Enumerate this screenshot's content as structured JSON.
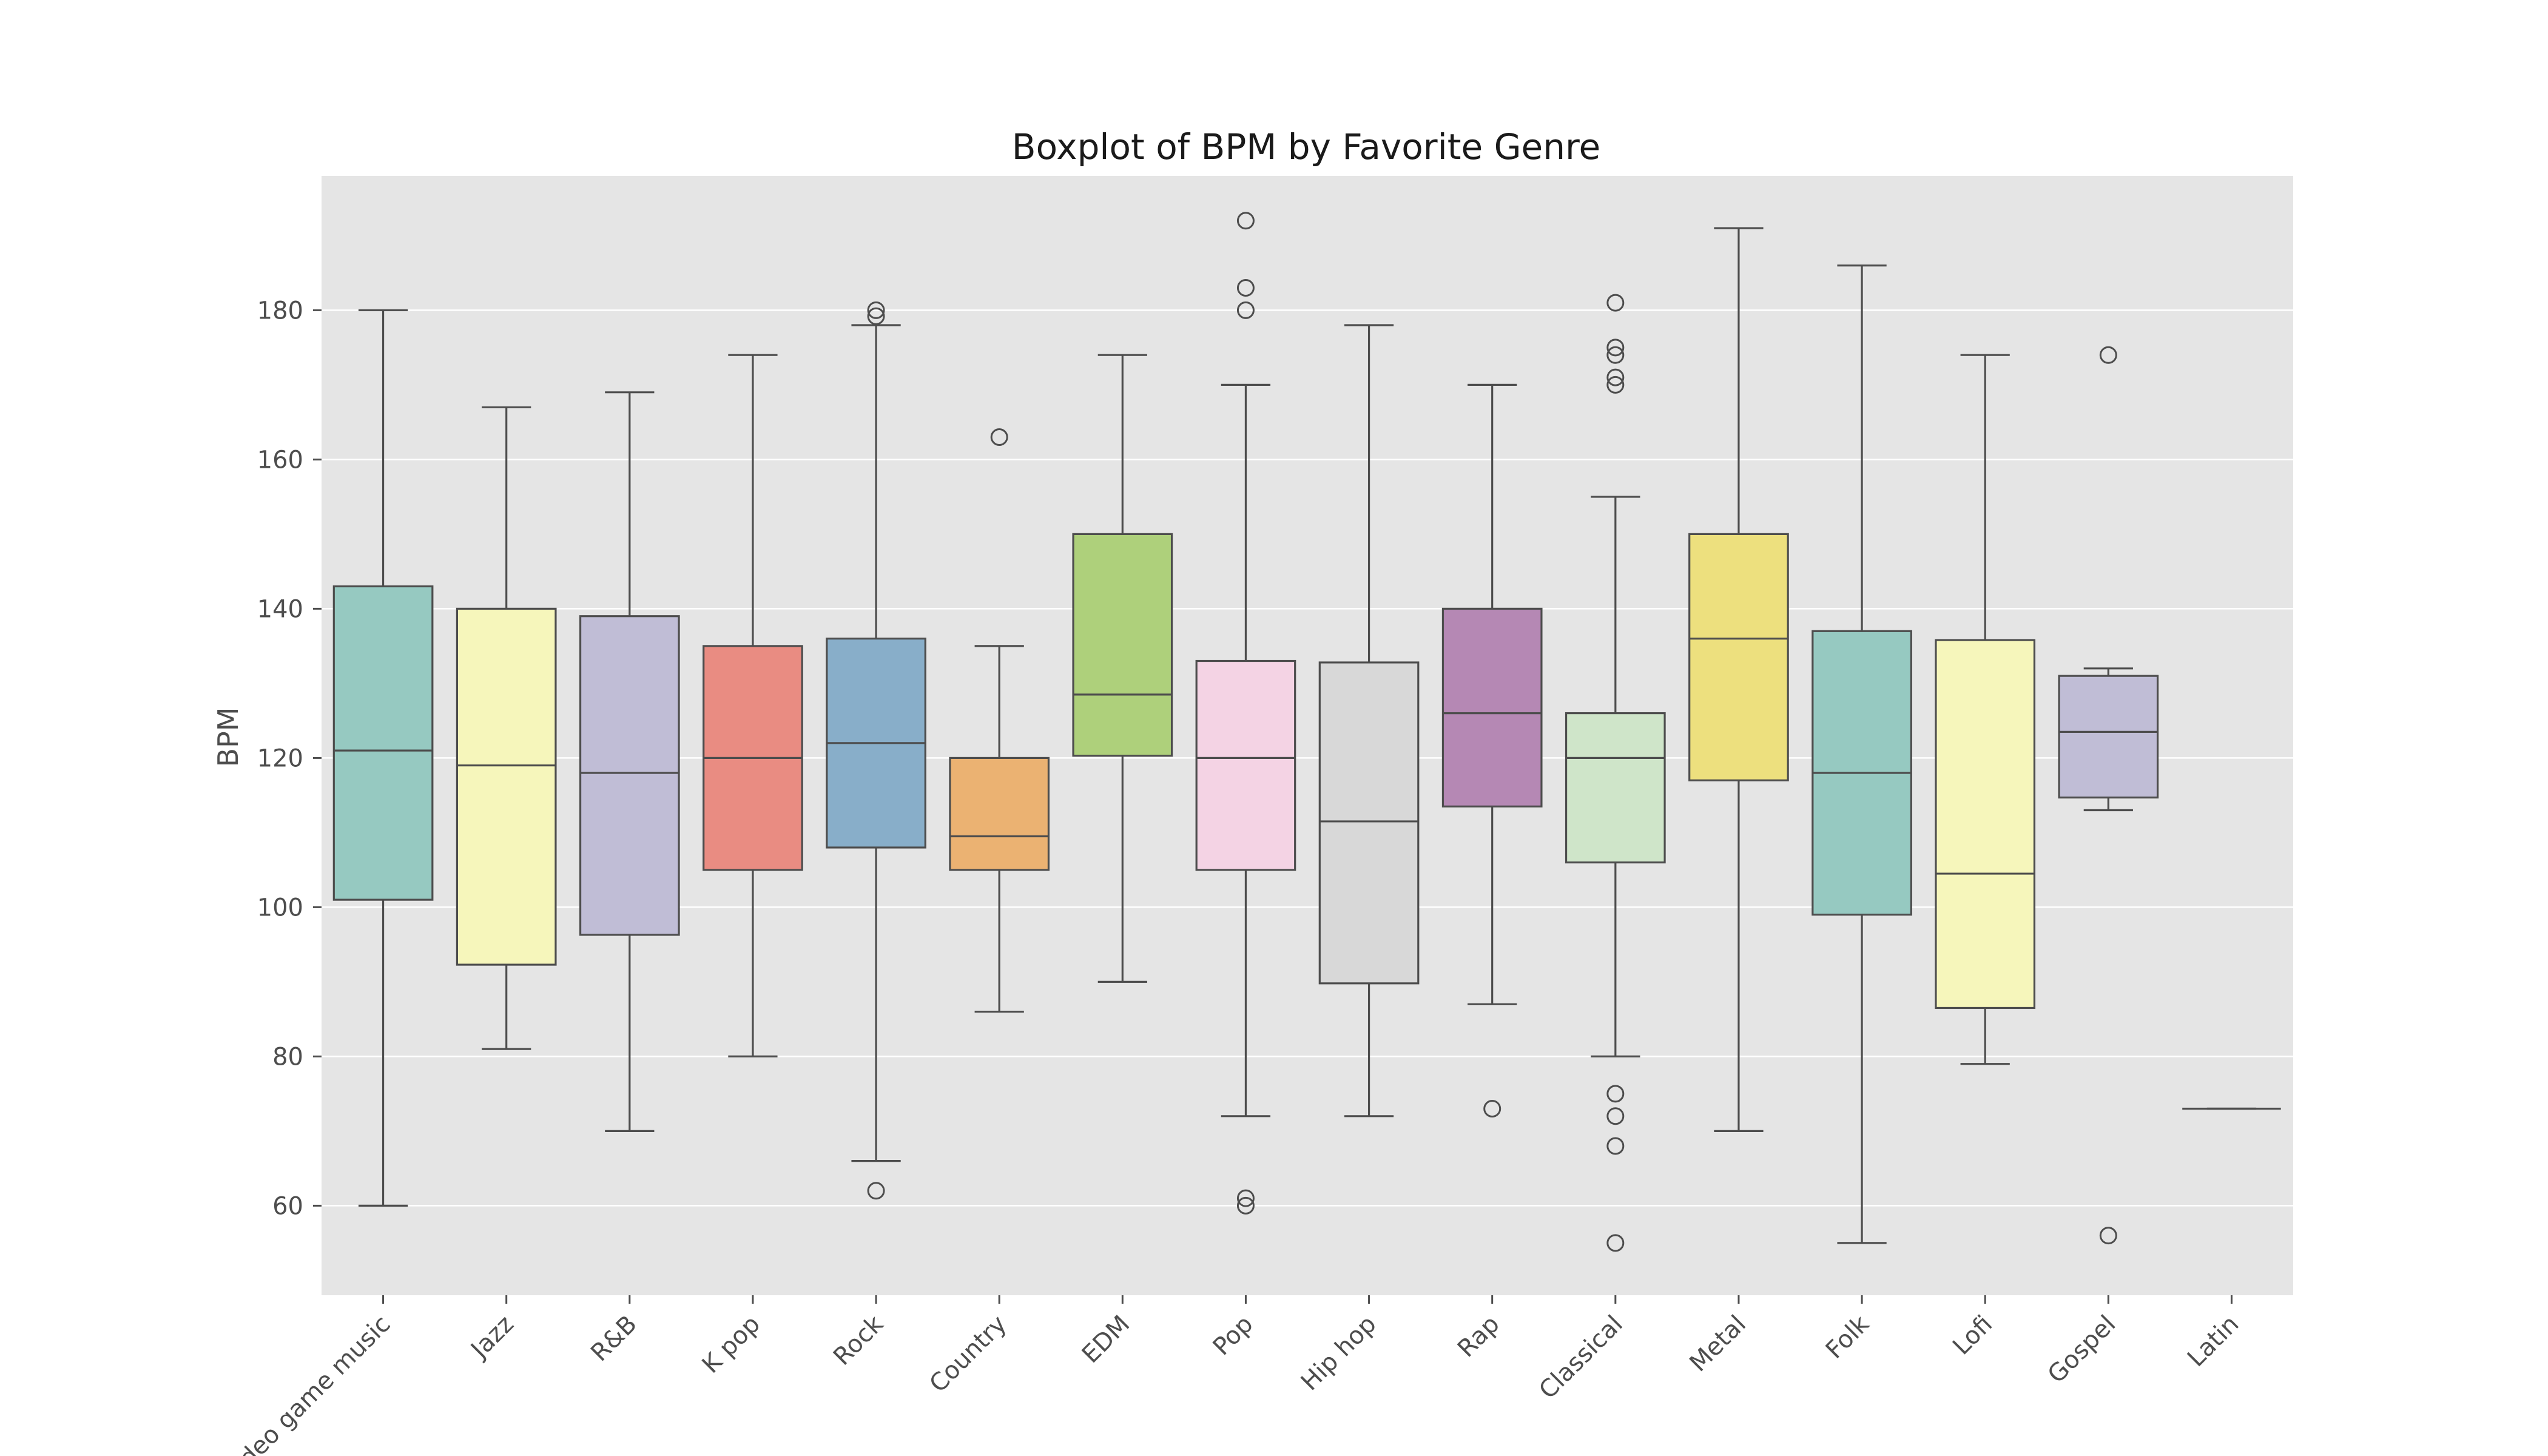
{
  "chart_data": {
    "type": "boxplot",
    "title": "Boxplot of BPM by Favorite Genre",
    "xlabel": "",
    "ylabel": "BPM",
    "ylim": [
      48,
      198
    ],
    "yticks": [
      60,
      80,
      100,
      120,
      140,
      160,
      180
    ],
    "grid": true,
    "legend": "none",
    "colors": {
      "plot_background": "#e5e5e5",
      "grid": "#ffffff",
      "box_edge": "#4d4d4d"
    },
    "categories": [
      "Video game music",
      "Jazz",
      "R&B",
      "K pop",
      "Rock",
      "Country",
      "EDM",
      "Pop",
      "Hip hop",
      "Rap",
      "Classical",
      "Metal",
      "Folk",
      "Lofi",
      "Gospel",
      "Latin"
    ],
    "boxes": [
      {
        "category": "Video game music",
        "whisker_low": 60,
        "q1": 101,
        "median": 121,
        "q3": 143,
        "whisker_high": 180,
        "outliers": [],
        "color": "#96c9c1"
      },
      {
        "category": "Jazz",
        "whisker_low": 81,
        "q1": 92.3,
        "median": 119,
        "q3": 140,
        "whisker_high": 167,
        "outliers": [],
        "color": "#f6f6bb"
      },
      {
        "category": "R&B",
        "whisker_low": 70,
        "q1": 96.3,
        "median": 118,
        "q3": 139,
        "whisker_high": 169,
        "outliers": [],
        "color": "#c0bdd6"
      },
      {
        "category": "K pop",
        "whisker_low": 80,
        "q1": 105,
        "median": 120,
        "q3": 135,
        "whisker_high": 174,
        "outliers": [],
        "color": "#e98c82"
      },
      {
        "category": "Rock",
        "whisker_low": 66,
        "q1": 108,
        "median": 122,
        "q3": 136,
        "whisker_high": 178,
        "outliers": [
          62,
          179.2,
          180
        ],
        "color": "#88aec9"
      },
      {
        "category": "Country",
        "whisker_low": 86,
        "q1": 105,
        "median": 109.5,
        "q3": 120,
        "whisker_high": 135,
        "outliers": [
          163
        ],
        "color": "#ebb272"
      },
      {
        "category": "EDM",
        "whisker_low": 90,
        "q1": 120.3,
        "median": 128.5,
        "q3": 150,
        "whisker_high": 174,
        "outliers": [],
        "color": "#aed07b"
      },
      {
        "category": "Pop",
        "whisker_low": 72,
        "q1": 105,
        "median": 120,
        "q3": 133,
        "whisker_high": 170,
        "outliers": [
          60,
          61,
          180,
          183,
          192
        ],
        "color": "#f4d3e4"
      },
      {
        "category": "Hip hop",
        "whisker_low": 72,
        "q1": 89.8,
        "median": 111.5,
        "q3": 132.8,
        "whisker_high": 178,
        "outliers": [],
        "color": "#d8d8d8"
      },
      {
        "category": "Rap",
        "whisker_low": 87,
        "q1": 113.5,
        "median": 126,
        "q3": 140,
        "whisker_high": 170,
        "outliers": [
          73
        ],
        "color": "#b588b4"
      },
      {
        "category": "Classical",
        "whisker_low": 80,
        "q1": 106,
        "median": 120,
        "q3": 126,
        "whisker_high": 155,
        "outliers": [
          55,
          68,
          72,
          75,
          170,
          171,
          174,
          175,
          181
        ],
        "color": "#cfe5c9"
      },
      {
        "category": "Metal",
        "whisker_low": 70,
        "q1": 117,
        "median": 136,
        "q3": 150,
        "whisker_high": 191,
        "outliers": [],
        "color": "#ede07e"
      },
      {
        "category": "Folk",
        "whisker_low": 55,
        "q1": 99,
        "median": 118,
        "q3": 137,
        "whisker_high": 186,
        "outliers": [],
        "color": "#96c9c1"
      },
      {
        "category": "Lofi",
        "whisker_low": 79,
        "q1": 86.5,
        "median": 104.5,
        "q3": 135.8,
        "whisker_high": 174,
        "outliers": [],
        "color": "#f6f6bb"
      },
      {
        "category": "Gospel",
        "whisker_low": 113,
        "q1": 114.7,
        "median": 123.5,
        "q3": 131,
        "whisker_high": 132,
        "outliers": [
          56,
          174
        ],
        "color": "#c0bdd6"
      },
      {
        "category": "Latin",
        "whisker_low": 73,
        "q1": 73,
        "median": 73,
        "q3": 73,
        "whisker_high": 73,
        "outliers": [],
        "color": "#e98c82"
      }
    ]
  }
}
